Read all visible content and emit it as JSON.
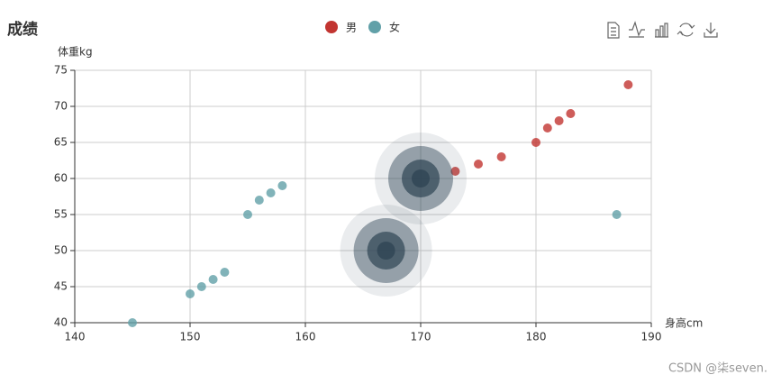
{
  "chart_data": {
    "type": "scatter",
    "title": "成绩",
    "x_label": "身高cm",
    "y_label": "体重kg",
    "xlim": [
      140,
      190
    ],
    "xticks": [
      140,
      150,
      160,
      170,
      180,
      190
    ],
    "ylim": [
      40,
      75
    ],
    "yticks": [
      40,
      45,
      50,
      55,
      60,
      65,
      70,
      75
    ],
    "grid": true,
    "legend": "top",
    "highlight_color": "#2f4554",
    "series": [
      {
        "name": "男",
        "color": "#c23531",
        "highlight": 8,
        "x": [
          173,
          175,
          177,
          180,
          181,
          182,
          183,
          188,
          170
        ],
        "values": [
          61,
          62,
          63,
          65,
          67,
          68,
          69,
          73,
          60
        ]
      },
      {
        "name": "女",
        "color": "#61a0a8",
        "highlight": 10,
        "x": [
          145,
          150,
          151,
          152,
          153,
          155,
          156,
          157,
          158,
          187,
          167
        ],
        "values": [
          40,
          44,
          45,
          46,
          47,
          55,
          57,
          58,
          59,
          55,
          50
        ]
      }
    ],
    "watermark": "CSDN @柒seven."
  }
}
